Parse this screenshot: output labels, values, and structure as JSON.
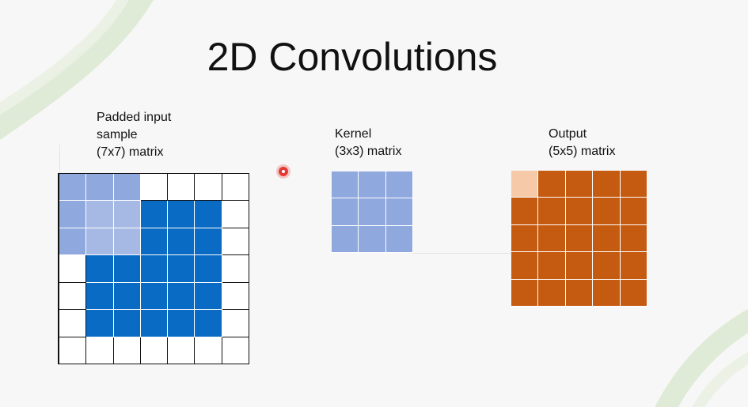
{
  "slide": {
    "title": "2D Convolutions",
    "background_color": "#f7f7f7"
  },
  "input": {
    "label": "Padded input\nsample\n(7x7) matrix",
    "rows": 7,
    "cols": 7,
    "padding": 1,
    "highlight_rows": [
      0,
      2
    ],
    "highlight_cols": [
      0,
      2
    ],
    "colors": {
      "pad": "#ffffff",
      "data": "#0a6bc4",
      "window": "#8fa8de",
      "window_over_data": "#a6b8e4"
    }
  },
  "kernel": {
    "label": "Kernel\n(3x3) matrix",
    "rows": 3,
    "cols": 3,
    "color": "#8fa8de"
  },
  "output": {
    "label": "Output\n(5x5) matrix",
    "rows": 5,
    "cols": 5,
    "current_cell": [
      0,
      0
    ],
    "colors": {
      "cell": "#c55a11",
      "current": "#f6c9a8"
    }
  },
  "pointer": {
    "icon": "laser-pointer-dot",
    "color": "#e53935"
  }
}
